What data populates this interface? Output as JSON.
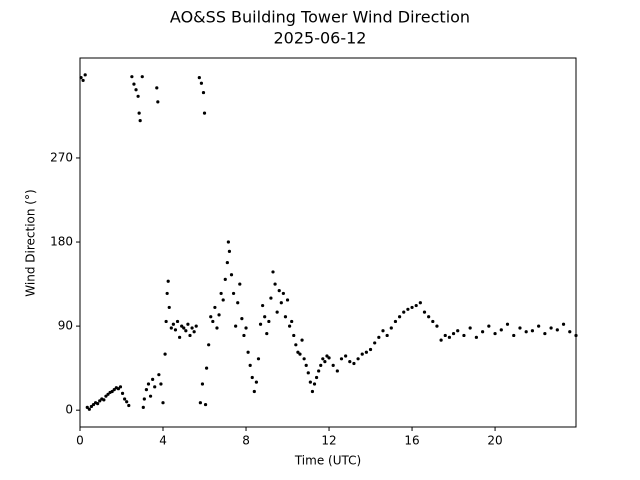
{
  "chart_data": {
    "type": "scatter",
    "title": "AO&SS Building Tower Wind Direction",
    "subtitle": "2025-06-12",
    "xlabel": "Time (UTC)",
    "ylabel": "Wind Direction (°)",
    "xlim": [
      0,
      23.9
    ],
    "ylim": [
      -18,
      377
    ],
    "xticks": [
      0,
      4,
      8,
      12,
      16,
      20
    ],
    "yticks": [
      0,
      90,
      180,
      270
    ],
    "grid": false,
    "x": [
      0.05,
      0.15,
      0.25,
      0.35,
      0.45,
      0.55,
      0.65,
      0.75,
      0.85,
      0.95,
      1.05,
      1.15,
      1.25,
      1.35,
      1.45,
      1.55,
      1.65,
      1.75,
      1.85,
      1.95,
      2.05,
      2.15,
      2.25,
      2.35,
      2.5,
      2.6,
      2.7,
      2.8,
      2.85,
      2.9,
      3.0,
      3.05,
      3.1,
      3.2,
      3.3,
      3.4,
      3.5,
      3.6,
      3.7,
      3.75,
      3.8,
      3.9,
      4.0,
      4.1,
      4.15,
      4.2,
      4.25,
      4.3,
      4.4,
      4.5,
      4.6,
      4.7,
      4.8,
      4.9,
      5.0,
      5.1,
      5.2,
      5.3,
      5.4,
      5.5,
      5.6,
      5.75,
      5.8,
      5.85,
      5.9,
      5.95,
      6.0,
      6.05,
      6.1,
      6.2,
      6.3,
      6.4,
      6.5,
      6.6,
      6.7,
      6.8,
      6.9,
      7.0,
      7.1,
      7.15,
      7.2,
      7.3,
      7.4,
      7.5,
      7.6,
      7.7,
      7.8,
      7.9,
      8.0,
      8.1,
      8.2,
      8.3,
      8.4,
      8.5,
      8.6,
      8.7,
      8.8,
      8.9,
      9.0,
      9.1,
      9.2,
      9.3,
      9.4,
      9.5,
      9.6,
      9.7,
      9.8,
      9.9,
      10.0,
      10.1,
      10.2,
      10.3,
      10.4,
      10.5,
      10.6,
      10.7,
      10.8,
      10.9,
      11.0,
      11.1,
      11.2,
      11.3,
      11.4,
      11.5,
      11.6,
      11.7,
      11.8,
      11.9,
      12.0,
      12.2,
      12.4,
      12.6,
      12.8,
      13.0,
      13.2,
      13.4,
      13.6,
      13.8,
      14.0,
      14.2,
      14.4,
      14.6,
      14.8,
      15.0,
      15.2,
      15.4,
      15.6,
      15.8,
      16.0,
      16.2,
      16.4,
      16.6,
      16.8,
      17.0,
      17.2,
      17.4,
      17.6,
      17.8,
      18.0,
      18.2,
      18.5,
      18.8,
      19.1,
      19.4,
      19.7,
      20.0,
      20.3,
      20.6,
      20.9,
      21.2,
      21.5,
      21.8,
      22.1,
      22.4,
      22.7,
      23.0,
      23.3,
      23.6,
      23.9
    ],
    "series": [
      {
        "color": "#000000",
        "values": [
          356,
          353,
          359,
          3,
          1,
          4,
          6,
          8,
          7,
          10,
          12,
          11,
          15,
          17,
          19,
          20,
          22,
          24,
          23,
          25,
          18,
          12,
          9,
          5,
          357,
          349,
          343,
          336,
          318,
          310,
          357,
          3,
          12,
          22,
          28,
          15,
          33,
          25,
          345,
          330,
          38,
          28,
          8,
          60,
          95,
          125,
          138,
          110,
          88,
          92,
          86,
          95,
          78,
          90,
          88,
          85,
          92,
          80,
          88,
          84,
          90,
          356,
          8,
          350,
          28,
          340,
          318,
          6,
          45,
          70,
          100,
          95,
          110,
          88,
          102,
          125,
          118,
          140,
          158,
          180,
          170,
          145,
          125,
          90,
          115,
          135,
          98,
          80,
          88,
          62,
          48,
          35,
          20,
          30,
          55,
          92,
          112,
          100,
          82,
          95,
          120,
          148,
          135,
          105,
          128,
          115,
          125,
          100,
          118,
          90,
          95,
          80,
          70,
          62,
          60,
          75,
          55,
          48,
          40,
          30,
          20,
          28,
          35,
          42,
          48,
          55,
          52,
          58,
          56,
          48,
          42,
          55,
          58,
          52,
          50,
          55,
          60,
          62,
          65,
          72,
          78,
          85,
          80,
          88,
          95,
          100,
          105,
          108,
          110,
          112,
          115,
          105,
          100,
          95,
          90,
          75,
          80,
          78,
          82,
          85,
          80,
          88,
          78,
          84,
          90,
          82,
          86,
          92,
          80,
          88,
          84,
          85,
          90,
          82,
          88,
          86,
          92,
          84,
          80
        ]
      }
    ]
  }
}
